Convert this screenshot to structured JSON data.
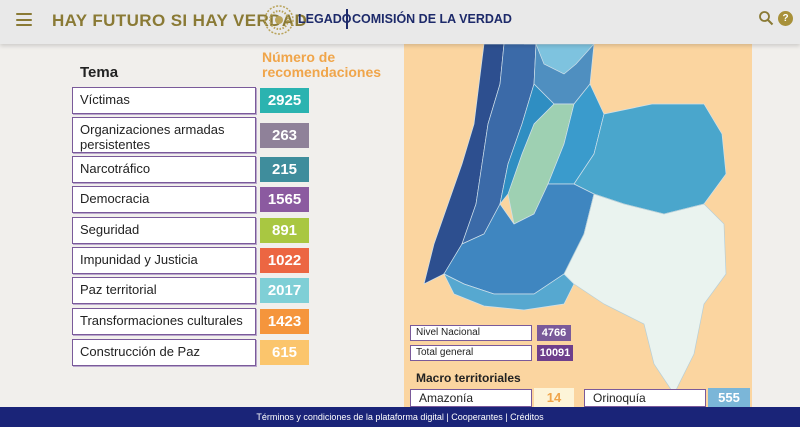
{
  "header": {
    "slogan": "HAY FUTURO SI HAY VERDAD",
    "brand_left": "LEGADO",
    "brand_right": "COMISIÓN DE LA VERDAD",
    "help_label": "?"
  },
  "table": {
    "tema_heading": "Tema",
    "numero_heading": "Número de recomendaciones",
    "rows": [
      {
        "tema": "Víctimas",
        "value": "2925",
        "color": "#2bb3b0"
      },
      {
        "tema": "Organizaciones armadas persistentes",
        "value": "263",
        "color": "#8f8199"
      },
      {
        "tema": "Narcotráfico",
        "value": "215",
        "color": "#3f8d9c"
      },
      {
        "tema": "Democracia",
        "value": "1565",
        "color": "#8b5aa0"
      },
      {
        "tema": "Seguridad",
        "value": "891",
        "color": "#a9c741"
      },
      {
        "tema": "Impunidad y Justicia",
        "value": "1022",
        "color": "#ec6642"
      },
      {
        "tema": "Paz territorial",
        "value": "2017",
        "color": "#7fcfd6"
      },
      {
        "tema": "Transformaciones culturales",
        "value": "1423",
        "color": "#f5953c"
      },
      {
        "tema": "Construcción de Paz",
        "value": "615",
        "color": "#fbc56c"
      }
    ]
  },
  "map": {
    "nivel_nacional_label": "Nivel Nacional",
    "nivel_nacional_value": "4766",
    "total_general_label": "Total general",
    "total_general_value": "10091",
    "macro_heading": "Macro territoriales",
    "macro": [
      {
        "label": "Amazonía",
        "value": "14",
        "color": "#fdf4d8"
      },
      {
        "label": "Orinoquía",
        "value": "555",
        "color": "#7bb6d8"
      }
    ],
    "colors": {
      "nat": "#7a5a9a",
      "total": "#6e3f8c"
    }
  },
  "footer": {
    "text": "Términos y condiciones de la plataforma digital | Cooperantes | Créditos"
  }
}
